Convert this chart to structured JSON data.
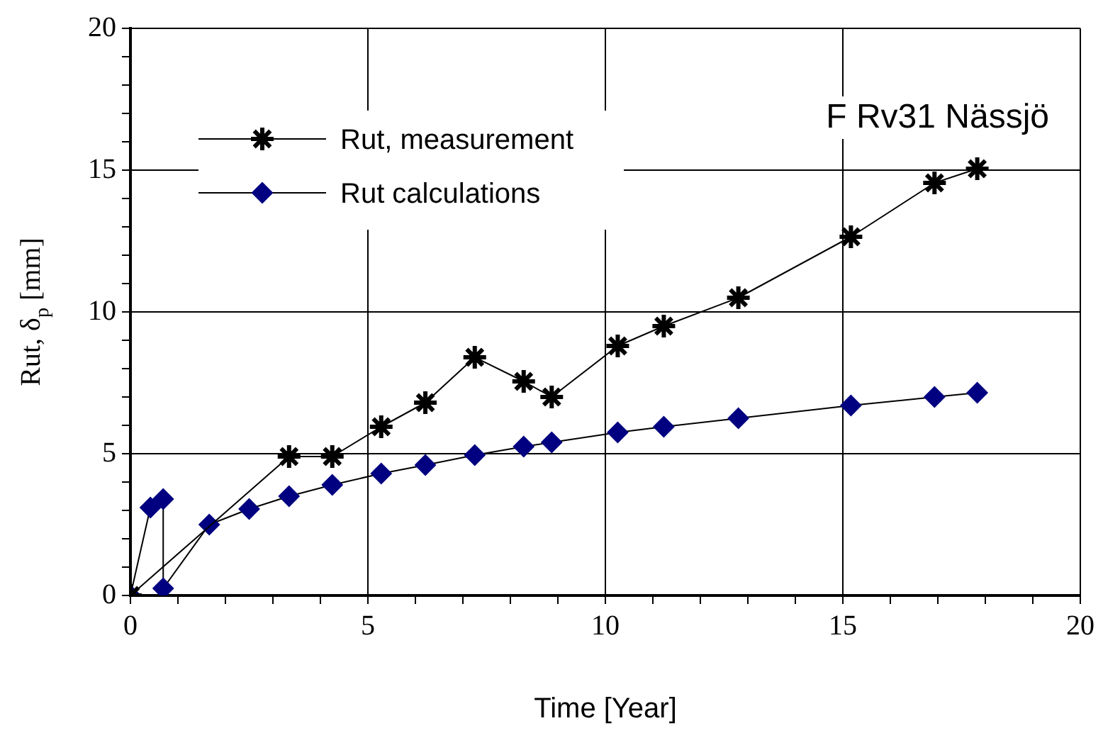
{
  "chart_data": {
    "type": "line",
    "title": "F Rv31 Nässjö",
    "xlabel": "Time [Year]",
    "ylabel": "Rut, δ$_{p}$ [mm]",
    "xlim": [
      0,
      20
    ],
    "ylim": [
      0,
      20
    ],
    "xticks": [
      0,
      {
        "value": 1,
        "label": null
      },
      {
        "value": 2,
        "label": null
      },
      {
        "value": 3,
        "label": null
      },
      {
        "value": 4,
        "label": null
      },
      5,
      {
        "value": 6,
        "label": null
      },
      {
        "value": 7,
        "label": null
      },
      {
        "value": 8,
        "label": null
      },
      {
        "value": 9,
        "label": null
      },
      10,
      {
        "value": 11,
        "label": null
      },
      {
        "value": 12,
        "label": null
      },
      {
        "value": 13,
        "label": null
      },
      {
        "value": 14,
        "label": null
      },
      15,
      {
        "value": 16,
        "label": null
      },
      {
        "value": 17,
        "label": null
      },
      {
        "value": 18,
        "label": null
      },
      {
        "value": 19,
        "label": null
      },
      20
    ],
    "yticks": [
      0,
      {
        "value": 1,
        "label": null
      },
      {
        "value": 2,
        "label": null
      },
      {
        "value": 3,
        "label": null
      },
      {
        "value": 4,
        "label": null
      },
      5,
      {
        "value": 6,
        "label": null
      },
      {
        "value": 7,
        "label": null
      },
      {
        "value": 8,
        "label": null
      },
      {
        "value": 9,
        "label": null
      },
      10,
      {
        "value": 11,
        "label": null
      },
      {
        "value": 12,
        "label": null
      },
      {
        "value": 13,
        "label": null
      },
      {
        "value": 14,
        "label": null
      },
      15,
      {
        "value": 16,
        "label": null
      },
      {
        "value": 17,
        "label": null
      },
      {
        "value": 18,
        "label": null
      },
      {
        "value": 19,
        "label": null
      },
      20
    ],
    "grid": true,
    "legend": "top left",
    "series": [
      {
        "name": "Rut, measurement",
        "color": "#000000",
        "marker": "cross",
        "x": [
          0,
          3.34,
          4.25,
          5.28,
          6.21,
          7.25,
          8.28,
          8.87,
          10.26,
          11.23,
          12.8,
          15.17,
          16.93,
          17.83
        ],
        "values": [
          0,
          4.9,
          4.9,
          5.95,
          6.8,
          8.4,
          7.55,
          7.0,
          8.8,
          9.5,
          10.5,
          12.65,
          14.55,
          15.05
        ]
      },
      {
        "name": "Rut calculations",
        "color": "#000080",
        "marker": "diamond",
        "x": [
          0,
          0.42,
          0.69,
          0.69,
          1.66,
          2.5,
          3.34,
          4.25,
          5.28,
          6.21,
          7.25,
          8.28,
          8.87,
          10.26,
          11.23,
          12.8,
          15.17,
          16.93,
          17.83
        ],
        "values": [
          0,
          3.1,
          3.4,
          0.25,
          2.5,
          3.05,
          3.5,
          3.9,
          4.3,
          4.6,
          4.95,
          5.25,
          5.4,
          5.75,
          5.95,
          6.25,
          6.7,
          7.0,
          7.15
        ]
      }
    ]
  }
}
